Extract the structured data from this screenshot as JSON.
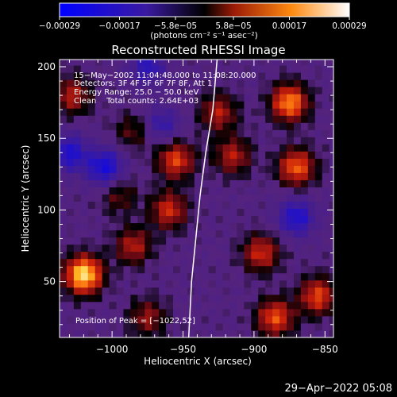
{
  "chart_data": {
    "type": "heatmap",
    "title": "Reconstructed RHESSI Image",
    "xlabel": "Heliocentric X (arcsec)",
    "ylabel": "Heliocentric Y (arcsec)",
    "xlim": [
      -1037,
      -844
    ],
    "ylim": [
      11,
      205
    ],
    "x_ticks": [
      -1000,
      -950,
      -900,
      -850
    ],
    "x_tick_labels": [
      "−1000",
      "−950",
      "−900",
      "−850"
    ],
    "y_ticks": [
      50,
      100,
      150,
      200
    ],
    "y_tick_labels": [
      "50",
      "100",
      "150",
      "200"
    ],
    "colorbar": {
      "ticks": [
        -0.00029,
        -0.00017,
        -5.8e-05,
        5.8e-05,
        0.00017,
        0.00029
      ],
      "tick_labels": [
        "−0.00029",
        "−0.00017",
        "−5.8e−05",
        "5.8e−05",
        "0.00017",
        "0.00029"
      ],
      "unit_label": "(photons cm⁻² s⁻¹ asec⁻²)",
      "range": [
        -0.00029,
        0.00029
      ]
    },
    "annotations": {
      "time_range": "15−May−2002 11:04:48.000 to 11:08:20.000",
      "detectors": "Detectors: 3F 4F 5F 6F 7F 8F, Att 1",
      "energy_range": "Energy Range: 25.0 − 50.0 keV",
      "clean": "Clean    Total counts: 2.64E+03",
      "peak_position": "Position of Peak = [−1022,52]"
    },
    "peak_position": [
      -1022,
      52
    ],
    "limb_curve": [
      [
        -946,
        11
      ],
      [
        -944,
        50
      ],
      [
        -941,
        80
      ],
      [
        -938,
        110
      ],
      [
        -934,
        140
      ],
      [
        -929,
        170
      ],
      [
        -926,
        205
      ]
    ],
    "hot_spots": [
      {
        "x": -955,
        "y": 135,
        "value": 0.00017
      },
      {
        "x": -960,
        "y": 100,
        "value": 0.00015
      },
      {
        "x": -925,
        "y": 168,
        "value": 0.00013
      },
      {
        "x": -915,
        "y": 138,
        "value": 0.00013
      },
      {
        "x": -875,
        "y": 175,
        "value": 0.00022
      },
      {
        "x": -870,
        "y": 130,
        "value": 0.00019
      },
      {
        "x": -855,
        "y": 40,
        "value": 0.00017
      },
      {
        "x": -1020,
        "y": 55,
        "value": 0.00029
      },
      {
        "x": -1028,
        "y": 180,
        "value": 0.00013
      },
      {
        "x": -985,
        "y": 75,
        "value": 0.00013
      },
      {
        "x": -895,
        "y": 70,
        "value": 0.00015
      },
      {
        "x": -885,
        "y": 25,
        "value": 0.00018
      },
      {
        "x": -975,
        "y": 25,
        "value": 0.00011
      },
      {
        "x": -985,
        "y": 155,
        "value": 8e-05
      },
      {
        "x": -995,
        "y": 110,
        "value": 8e-05
      }
    ],
    "cold_spots": [
      {
        "x": -1005,
        "y": 130,
        "value": -0.00017
      },
      {
        "x": -870,
        "y": 95,
        "value": -0.00015
      },
      {
        "x": -1030,
        "y": 140,
        "value": -0.00015
      },
      {
        "x": -975,
        "y": 200,
        "value": -0.00012
      },
      {
        "x": -965,
        "y": 160,
        "value": -0.0001
      }
    ]
  },
  "footer": {
    "timestamp": "29−Apr−2022 05:08"
  }
}
